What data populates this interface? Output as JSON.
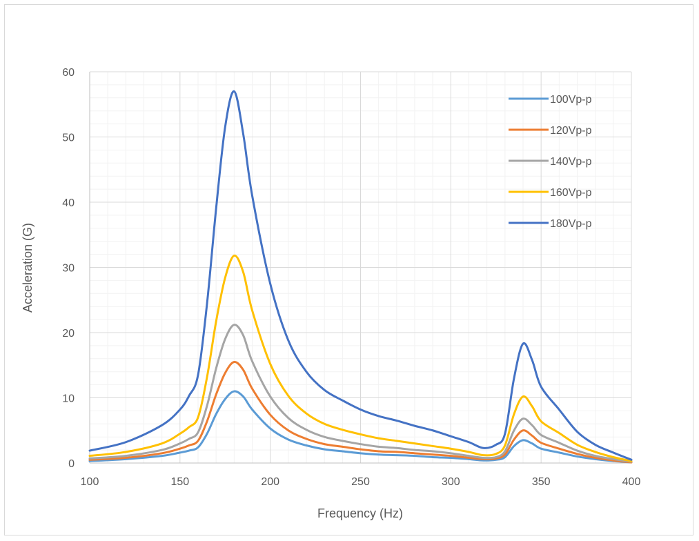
{
  "chart_data": {
    "type": "line",
    "title": "",
    "xlabel": "Frequency (Hz)",
    "ylabel": "Acceleration (G)",
    "xlim": [
      100,
      400
    ],
    "ylim": [
      0,
      60
    ],
    "x_ticks": [
      "100",
      "150",
      "200",
      "250",
      "300",
      "350",
      "400"
    ],
    "y_ticks": [
      "0",
      "10",
      "20",
      "30",
      "40",
      "50",
      "60"
    ],
    "grid": true,
    "legend_position": "top-right",
    "x": [
      100,
      120,
      140,
      150,
      155,
      160,
      165,
      170,
      175,
      180,
      185,
      190,
      200,
      210,
      220,
      230,
      240,
      250,
      260,
      270,
      280,
      290,
      300,
      310,
      318,
      325,
      330,
      335,
      340,
      345,
      350,
      360,
      370,
      380,
      390,
      400
    ],
    "series": [
      {
        "name": "100Vp-p",
        "color": "#5B9BD5",
        "values": [
          0.3,
          0.6,
          1.1,
          1.6,
          1.9,
          2.4,
          4.5,
          7.5,
          9.8,
          11.0,
          10.2,
          8.2,
          5.3,
          3.6,
          2.7,
          2.1,
          1.8,
          1.5,
          1.3,
          1.2,
          1.1,
          0.9,
          0.8,
          0.6,
          0.4,
          0.5,
          0.9,
          2.6,
          3.5,
          3.0,
          2.2,
          1.6,
          1.0,
          0.6,
          0.3,
          0.1
        ]
      },
      {
        "name": "120Vp-p",
        "color": "#ED7D31",
        "values": [
          0.5,
          0.8,
          1.5,
          2.2,
          2.7,
          3.4,
          6.4,
          10.5,
          13.8,
          15.5,
          14.3,
          11.4,
          7.4,
          5.0,
          3.7,
          2.9,
          2.5,
          2.1,
          1.8,
          1.7,
          1.5,
          1.3,
          1.1,
          0.8,
          0.6,
          0.7,
          1.3,
          3.6,
          5.0,
          4.2,
          3.1,
          2.2,
          1.4,
          0.8,
          0.4,
          0.1
        ]
      },
      {
        "name": "140Vp-p",
        "color": "#A5A5A5",
        "values": [
          0.7,
          1.1,
          2.0,
          3.0,
          3.7,
          4.7,
          8.8,
          14.5,
          19.0,
          21.2,
          19.6,
          15.6,
          10.2,
          6.9,
          5.1,
          4.0,
          3.4,
          2.9,
          2.5,
          2.3,
          2.0,
          1.8,
          1.5,
          1.1,
          0.8,
          0.9,
          1.8,
          5.0,
          6.8,
          5.8,
          4.3,
          3.1,
          1.9,
          1.1,
          0.6,
          0.2
        ]
      },
      {
        "name": "160Vp-p",
        "color": "#FFC000",
        "values": [
          1.1,
          1.7,
          3.0,
          4.5,
          5.5,
          7.0,
          13.2,
          21.7,
          28.4,
          31.8,
          29.3,
          23.4,
          15.2,
          10.3,
          7.6,
          6.0,
          5.1,
          4.4,
          3.8,
          3.4,
          3.0,
          2.6,
          2.2,
          1.7,
          1.2,
          1.4,
          2.7,
          7.5,
          10.2,
          8.7,
          6.4,
          4.6,
          2.8,
          1.7,
          0.9,
          0.3
        ]
      },
      {
        "name": "180Vp-p",
        "color": "#4472C4",
        "values": [
          1.9,
          3.2,
          5.8,
          8.2,
          10.3,
          13.5,
          24.5,
          39.0,
          51.5,
          57.0,
          50.5,
          41.0,
          27.5,
          18.8,
          14.0,
          11.2,
          9.6,
          8.2,
          7.2,
          6.5,
          5.7,
          5.0,
          4.1,
          3.2,
          2.3,
          2.8,
          4.5,
          13.0,
          18.3,
          15.8,
          11.7,
          8.2,
          4.8,
          2.8,
          1.6,
          0.5
        ]
      }
    ]
  }
}
